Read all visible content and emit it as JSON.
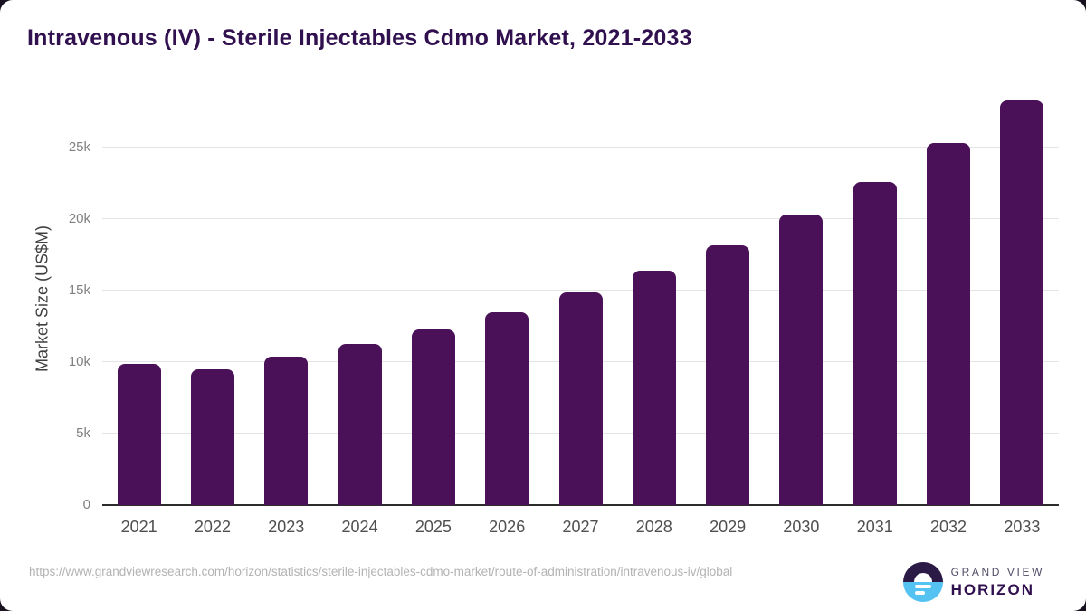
{
  "title": "Intravenous (IV) - Sterile Injectables Cdmo Market, 2021-2033",
  "chart_data": {
    "type": "bar",
    "title": "Intravenous (IV) - Sterile Injectables Cdmo Market, 2021-2033",
    "categories": [
      "2021",
      "2022",
      "2023",
      "2024",
      "2025",
      "2026",
      "2027",
      "2028",
      "2029",
      "2030",
      "2031",
      "2032",
      "2033"
    ],
    "values": [
      9900,
      9500,
      10400,
      11300,
      12300,
      13500,
      14900,
      16400,
      18200,
      20300,
      22600,
      25300,
      28300
    ],
    "xlabel": "",
    "ylabel": "Market Size (US$M)",
    "ylim": [
      0,
      29000
    ],
    "yticks": [
      0,
      5000,
      10000,
      15000,
      20000,
      25000
    ],
    "ytick_labels": [
      "0",
      "5k",
      "10k",
      "15k",
      "20k",
      "25k"
    ],
    "grid": true,
    "legend": "none",
    "bar_color": "#4a1158"
  },
  "footer": {
    "source_url": "https://www.grandviewresearch.com/horizon/statistics/sterile-injectables-cdmo-market/route-of-administration/intravenous-iv/global",
    "logo": {
      "brand_top": "GRAND VIEW",
      "brand_bottom": "HORIZON"
    }
  },
  "colors": {
    "bar": "#4a1158",
    "title": "#31104f",
    "logo_navy": "#2b1a45",
    "logo_blue": "#54c3f1",
    "gridline": "#e4e4e4",
    "axis_line": "#2d2d2d",
    "tick_label": "#7f7f7f",
    "source_text": "#b3b3b3",
    "page_background": "#171120"
  }
}
